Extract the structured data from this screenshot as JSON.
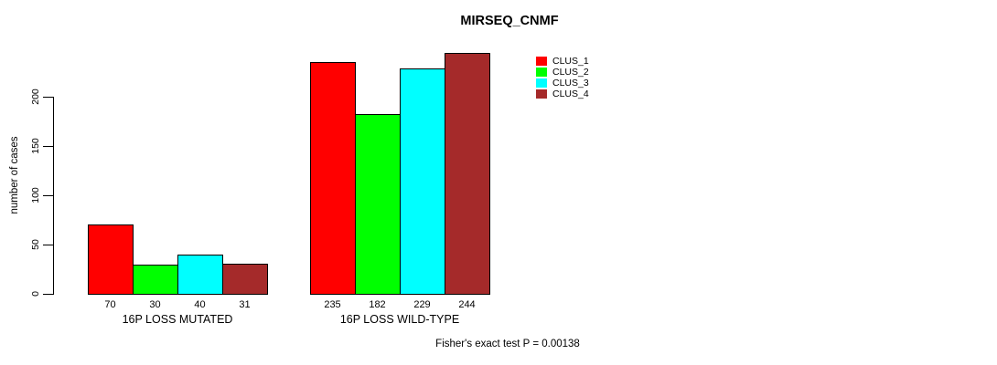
{
  "chart_data": {
    "type": "bar",
    "title": "MIRSEQ_CNMF",
    "ylabel": "number of cases",
    "ylim": [
      0,
      250
    ],
    "yticks": [
      0,
      50,
      100,
      150,
      200
    ],
    "grid": false,
    "legend_position": "top-right",
    "categories": [
      "16P LOSS MUTATED",
      "16P LOSS WILD-TYPE"
    ],
    "groups": [
      {
        "label": "16P LOSS MUTATED",
        "values": [
          70,
          30,
          40,
          31
        ]
      },
      {
        "label": "16P LOSS WILD-TYPE",
        "values": [
          235,
          182,
          229,
          244
        ]
      }
    ],
    "series": [
      {
        "name": "CLUS_1",
        "color": "#FF0000"
      },
      {
        "name": "CLUS_2",
        "color": "#00FF00"
      },
      {
        "name": "CLUS_3",
        "color": "#00FFFF"
      },
      {
        "name": "CLUS_4",
        "color": "#A52A2A"
      }
    ],
    "note": "Fisher's exact test P = 0.00138"
  }
}
